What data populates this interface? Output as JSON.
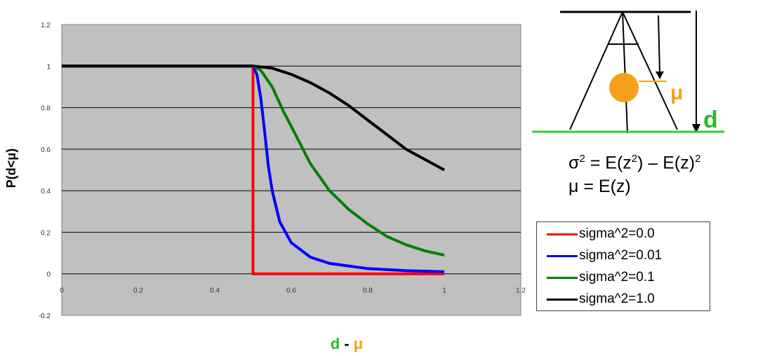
{
  "chart_data": {
    "type": "line",
    "xlabel_parts": [
      {
        "text": "d",
        "color": "#2db82d"
      },
      {
        "text": " - ",
        "color": "#000000"
      },
      {
        "text": "μ",
        "color": "#f5a21a"
      }
    ],
    "ylabel": "P(d<μ)",
    "xlim": [
      0,
      1.2
    ],
    "ylim": [
      -0.2,
      1.2
    ],
    "x_ticks": [
      "0",
      "0.2",
      "0.4",
      "0.6",
      "0.8",
      "1",
      "1.2"
    ],
    "y_ticks": [
      "-0.2",
      "0",
      "0.2",
      "0.4",
      "0.6",
      "0.8",
      "1",
      "1.2"
    ],
    "grid": "horizontal",
    "plot_background": "#c0c0c0",
    "legend_position": "right",
    "series": [
      {
        "name": "sigma^2=0.0",
        "color": "#ff0000",
        "x": [
          0,
          0.5,
          0.5,
          1.0
        ],
        "y": [
          1,
          1,
          0,
          0
        ]
      },
      {
        "name": "sigma^2=0.01",
        "color": "#0000ff",
        "x": [
          0,
          0.5,
          0.51,
          0.52,
          0.53,
          0.54,
          0.55,
          0.57,
          0.6,
          0.65,
          0.7,
          0.8,
          0.9,
          1.0
        ],
        "y": [
          1,
          1,
          0.96,
          0.85,
          0.69,
          0.52,
          0.4,
          0.25,
          0.15,
          0.08,
          0.05,
          0.025,
          0.015,
          0.01
        ]
      },
      {
        "name": "sigma^2=0.1",
        "color": "#008000",
        "x": [
          0,
          0.5,
          0.52,
          0.55,
          0.58,
          0.6,
          0.65,
          0.7,
          0.75,
          0.8,
          0.85,
          0.9,
          0.95,
          1.0
        ],
        "y": [
          1,
          1,
          0.98,
          0.9,
          0.78,
          0.71,
          0.53,
          0.4,
          0.31,
          0.24,
          0.18,
          0.14,
          0.11,
          0.09
        ]
      },
      {
        "name": "sigma^2=1.0",
        "color": "#000000",
        "x": [
          0,
          0.5,
          0.55,
          0.6,
          0.65,
          0.7,
          0.75,
          0.8,
          0.85,
          0.9,
          0.95,
          1.0
        ],
        "y": [
          1,
          1,
          0.99,
          0.96,
          0.92,
          0.87,
          0.81,
          0.74,
          0.67,
          0.6,
          0.55,
          0.5
        ]
      }
    ]
  },
  "formulas": {
    "line1_a": "σ",
    "line1_sup1": "2",
    "line1_b": " = E(z",
    "line1_sup2": "2",
    "line1_c": ") – E(z)",
    "line1_sup3": "2",
    "line2": "μ = E(z)"
  },
  "diagram": {
    "mu_label": "μ",
    "d_label": "d",
    "ball_color": "#f5a21a",
    "ground_color": "#33cc33",
    "mu_color": "#f5a21a",
    "d_color": "#2db82d"
  }
}
